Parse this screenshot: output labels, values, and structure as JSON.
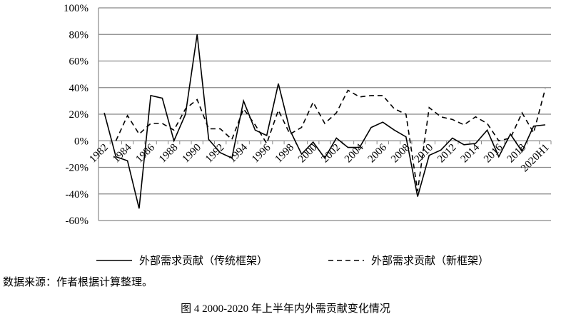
{
  "chart_data": {
    "type": "line",
    "title": "",
    "xlabel": "",
    "ylabel": "",
    "ylim": [
      -0.6,
      1.0
    ],
    "yticks": [
      "100%",
      "80%",
      "60%",
      "40%",
      "20%",
      "0%",
      "-20%",
      "-40%",
      "-60%"
    ],
    "ytick_values": [
      1.0,
      0.8,
      0.6,
      0.4,
      0.2,
      0,
      -0.2,
      -0.4,
      -0.6
    ],
    "grid": true,
    "legend": "bottom",
    "categories": [
      "1982",
      "1983",
      "1984",
      "1985",
      "1986",
      "1987",
      "1988",
      "1989",
      "1990",
      "1991",
      "1992",
      "1993",
      "1994",
      "1995",
      "1996",
      "1997",
      "1998",
      "1999",
      "2000",
      "2001",
      "2002",
      "2003",
      "2004",
      "2005",
      "2006",
      "2007",
      "2008",
      "2009",
      "2010",
      "2011",
      "2012",
      "2013",
      "2014",
      "2015",
      "2016",
      "2017",
      "2018",
      "2019",
      "2020H1"
    ],
    "xtick_labels": [
      "1982",
      "1984",
      "1986",
      "1988",
      "1990",
      "1992",
      "1994",
      "1996",
      "1998",
      "2000",
      "2002",
      "2004",
      "2006",
      "2008",
      "2010",
      "2012",
      "2014",
      "2016",
      "2018",
      "2020H1"
    ],
    "series": [
      {
        "name": "外部需求贡献（传统框架）",
        "style": "solid",
        "color": "#000000",
        "values": [
          0.21,
          -0.12,
          -0.15,
          -0.51,
          0.34,
          0.32,
          0.0,
          0.2,
          0.8,
          0.01,
          -0.09,
          -0.13,
          0.3,
          0.08,
          0.04,
          0.43,
          0.08,
          -0.1,
          -0.01,
          -0.13,
          0.02,
          -0.05,
          -0.05,
          0.1,
          0.14,
          0.08,
          0.03,
          -0.42,
          -0.11,
          -0.07,
          0.02,
          -0.03,
          -0.02,
          0.08,
          -0.12,
          0.05,
          -0.08,
          0.11,
          0.12
        ]
      },
      {
        "name": "外部需求贡献（新框架）",
        "style": "dashed",
        "color": "#000000",
        "values": [
          null,
          0.0,
          0.19,
          0.05,
          0.13,
          0.13,
          0.08,
          0.24,
          0.31,
          0.09,
          0.09,
          0.01,
          0.24,
          0.12,
          -0.02,
          0.23,
          0.05,
          0.1,
          0.29,
          0.13,
          0.21,
          0.38,
          0.33,
          0.34,
          0.34,
          0.24,
          0.2,
          -0.38,
          0.25,
          0.18,
          0.16,
          0.12,
          0.18,
          0.13,
          0.0,
          0.02,
          0.21,
          0.06,
          0.39
        ]
      }
    ]
  },
  "source_note": "数据来源：作者根据计算整理。",
  "caption": "图 4 2000-2020 年上半年内外需贡献变化情况"
}
